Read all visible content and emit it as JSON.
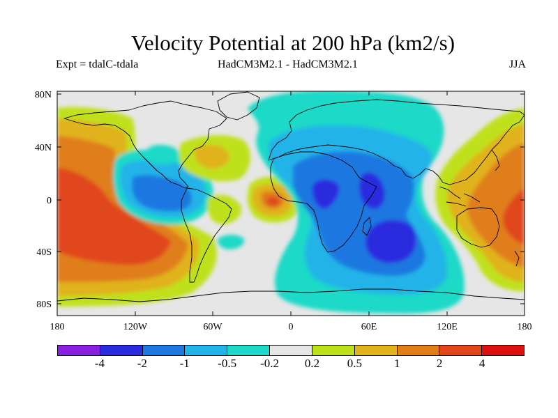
{
  "title": "Velocity Potential at 200 hPa (km2/s)",
  "subtitle": {
    "left": "Expt = tdalC-tdala",
    "center": "HadCM3M2.1 - HadCM3M2.1",
    "right": "JJA"
  },
  "map": {
    "lat_ticks": [
      "80N",
      "40N",
      "0",
      "40S",
      "80S"
    ],
    "lon_ticks": [
      "180",
      "120W",
      "60W",
      "0",
      "60E",
      "120E",
      "180"
    ]
  },
  "colorbar": {
    "colors": [
      "#8a1fe0",
      "#2a2adf",
      "#1f78e0",
      "#22b4e8",
      "#1ed9c8",
      "#e6e6e6",
      "#bfe11b",
      "#e0b21c",
      "#e07e1a",
      "#e0461a",
      "#dd1010"
    ],
    "labels": [
      "-4",
      "-2",
      "-1",
      "-0.5",
      "-0.2",
      "0.2",
      "0.5",
      "1",
      "2",
      "4"
    ]
  }
}
